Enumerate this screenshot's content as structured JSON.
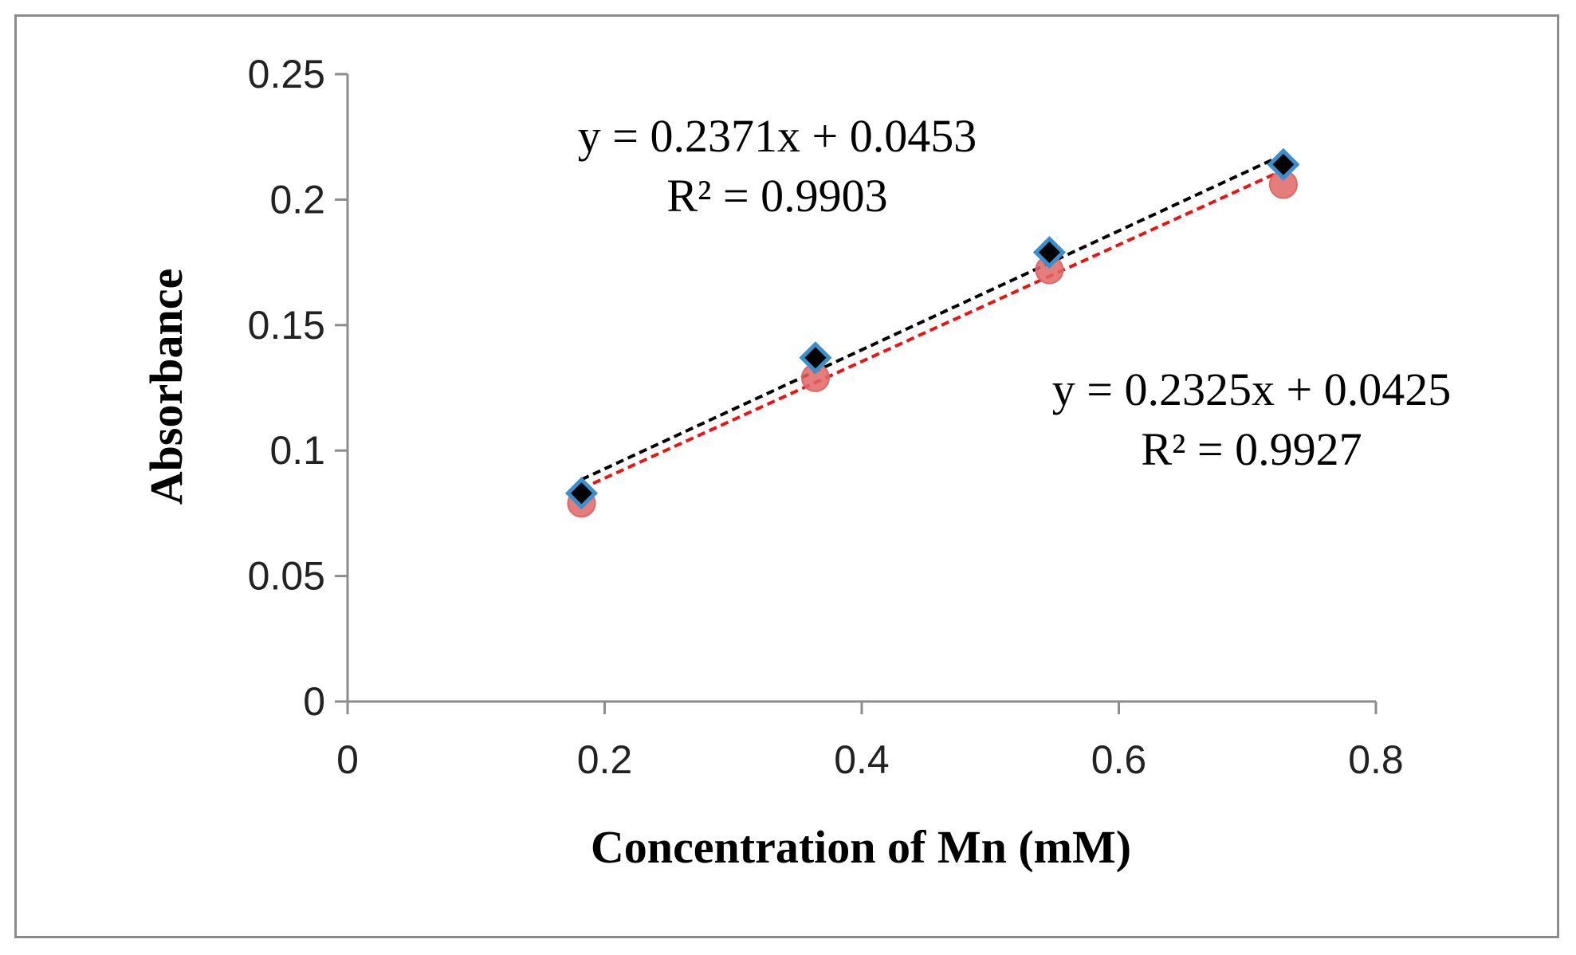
{
  "chart_data": {
    "type": "scatter",
    "title": "",
    "xlabel": "Concentration of Mn (mM)",
    "ylabel": "Absorbance",
    "xlim": [
      0,
      0.8
    ],
    "ylim": [
      0,
      0.25
    ],
    "x_ticks": [
      "0",
      "0.2",
      "0.4",
      "0.6",
      "0.8"
    ],
    "y_ticks": [
      "0",
      "0.05",
      "0.1",
      "0.15",
      "0.2",
      "0.25"
    ],
    "grid": false,
    "series": [
      {
        "marker": "diamond",
        "marker_fill": "#000000",
        "marker_edge": "#3a8fd0",
        "trendline_color": "#000000",
        "x": [
          0.182,
          0.364,
          0.546,
          0.728
        ],
        "y": [
          0.083,
          0.137,
          0.179,
          0.214
        ],
        "trendline": {
          "slope": 0.2371,
          "intercept": 0.0453
        },
        "equation": "y = 0.2371x + 0.0453",
        "r2": "R² = 0.9903"
      },
      {
        "marker": "circle",
        "marker_fill": "#e06666",
        "marker_edge": "#e06666",
        "trendline_color": "#ee1111",
        "x": [
          0.182,
          0.364,
          0.546,
          0.728
        ],
        "y": [
          0.079,
          0.129,
          0.172,
          0.206
        ],
        "trendline": {
          "slope": 0.2325,
          "intercept": 0.0425
        },
        "equation": "y = 0.2325x + 0.0425",
        "r2": "R² = 0.9927"
      }
    ]
  }
}
